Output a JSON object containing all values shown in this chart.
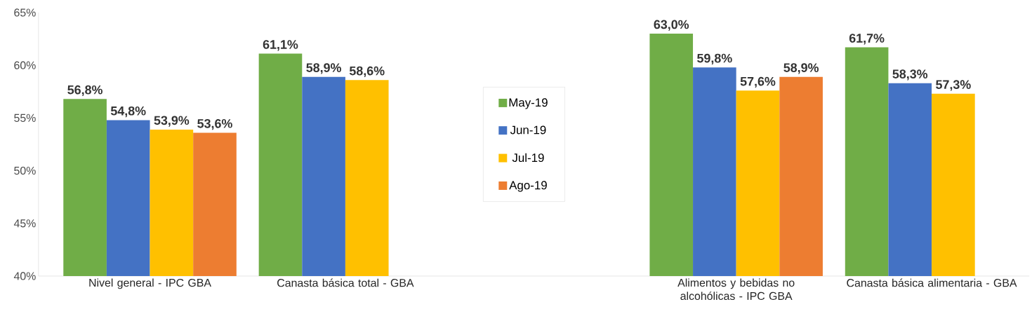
{
  "chart_data": {
    "type": "bar",
    "categories": [
      "Nivel general - IPC  GBA",
      "Canasta básica total - GBA",
      null,
      "Alimentos y bebidas no alcohólicas - IPC GBA",
      "Canasta básica alimentaria - GBA"
    ],
    "series": [
      {
        "name": "May-19",
        "color": "#70ad47",
        "values": [
          56.8,
          61.1,
          null,
          63.0,
          61.7
        ],
        "value_labels": [
          "56,8%",
          "61,1%",
          null,
          "63,0%",
          "61,7%"
        ]
      },
      {
        "name": "Jun-19",
        "color": "#4472c4",
        "values": [
          54.8,
          58.9,
          null,
          59.8,
          58.3
        ],
        "value_labels": [
          "54,8%",
          "58,9%",
          null,
          "59,8%",
          "58,3%"
        ]
      },
      {
        "name": "Jul-19",
        "color": "#ffc000",
        "values": [
          53.9,
          58.6,
          null,
          57.6,
          57.3
        ],
        "value_labels": [
          "53,9%",
          "58,6%",
          null,
          "57,6%",
          "57,3%"
        ]
      },
      {
        "name": "Ago-19",
        "color": "#ed7d31",
        "values": [
          53.6,
          null,
          null,
          58.9,
          null
        ],
        "value_labels": [
          "53,6%",
          null,
          null,
          "58,9%",
          null
        ]
      }
    ],
    "ylim": [
      40,
      65
    ],
    "yticks": [
      {
        "value": 40,
        "label": "40%"
      },
      {
        "value": 45,
        "label": "45%"
      },
      {
        "value": 50,
        "label": "50%"
      },
      {
        "value": 55,
        "label": "55%"
      },
      {
        "value": 60,
        "label": "60%"
      },
      {
        "value": 65,
        "label": "65%"
      }
    ],
    "grid": false,
    "legend": "center"
  }
}
